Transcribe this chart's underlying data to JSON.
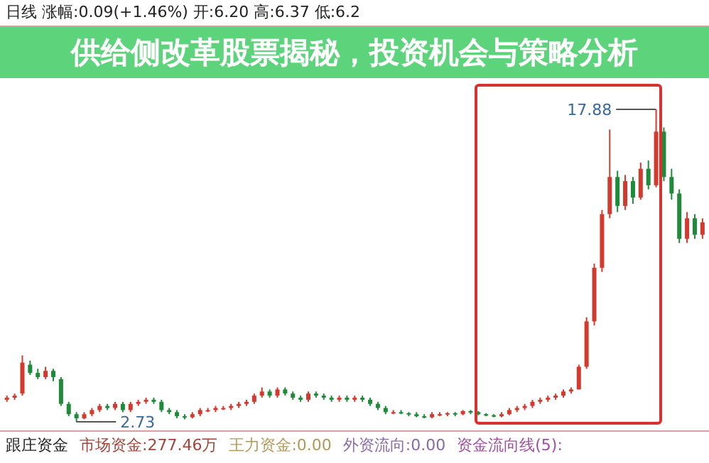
{
  "chart_data": {
    "type": "candlestick",
    "title": "供给侧改革股票揭秘，投资机会与策略分析",
    "categories": [
      null,
      null,
      null,
      null,
      null,
      null,
      null,
      null,
      null,
      null,
      null,
      null,
      null,
      null,
      null,
      null,
      null,
      null,
      null,
      null,
      null,
      null,
      null,
      null,
      null,
      null,
      null,
      null,
      null,
      null,
      null,
      null,
      null,
      null,
      null,
      null,
      null,
      null,
      null,
      null,
      null,
      null,
      null,
      null,
      null,
      null,
      null,
      null,
      null,
      null,
      null,
      null,
      null,
      null,
      null,
      null,
      null,
      null,
      null,
      null,
      null,
      null,
      null,
      null,
      null,
      null,
      null,
      null,
      null,
      null,
      null,
      null,
      null,
      null,
      null,
      null,
      null,
      null,
      null,
      null,
      null,
      null,
      null,
      null,
      null,
      null,
      null,
      null,
      null,
      null,
      null
    ],
    "ohlc": [
      [
        3.8,
        4.0,
        3.7,
        3.9
      ],
      [
        3.9,
        4.1,
        3.8,
        4.0
      ],
      [
        4.1,
        5.95,
        4.0,
        5.6
      ],
      [
        5.5,
        5.7,
        5.0,
        5.1
      ],
      [
        5.1,
        5.3,
        4.8,
        4.9
      ],
      [
        4.9,
        5.4,
        4.8,
        5.2
      ],
      [
        5.2,
        5.3,
        4.7,
        4.9
      ],
      [
        4.8,
        4.9,
        3.5,
        3.6
      ],
      [
        3.6,
        3.7,
        3.0,
        3.1
      ],
      [
        3.1,
        3.2,
        2.73,
        2.9
      ],
      [
        2.9,
        3.2,
        2.85,
        3.1
      ],
      [
        3.1,
        3.4,
        3.0,
        3.3
      ],
      [
        3.3,
        3.6,
        3.2,
        3.5
      ],
      [
        3.5,
        3.6,
        3.3,
        3.4
      ],
      [
        3.4,
        3.7,
        3.3,
        3.6
      ],
      [
        3.6,
        3.7,
        3.2,
        3.3
      ],
      [
        3.3,
        3.7,
        3.2,
        3.6
      ],
      [
        3.6,
        3.8,
        3.5,
        3.7
      ],
      [
        3.7,
        3.9,
        3.6,
        3.8
      ],
      [
        3.8,
        3.9,
        3.6,
        3.7
      ],
      [
        3.7,
        3.8,
        3.2,
        3.3
      ],
      [
        3.3,
        3.4,
        3.1,
        3.2
      ],
      [
        3.2,
        3.3,
        2.9,
        3.0
      ],
      [
        3.0,
        3.1,
        2.85,
        2.95
      ],
      [
        2.95,
        3.2,
        2.9,
        3.1
      ],
      [
        3.1,
        3.4,
        3.0,
        3.3
      ],
      [
        3.3,
        3.4,
        3.2,
        3.3
      ],
      [
        3.3,
        3.5,
        3.2,
        3.4
      ],
      [
        3.4,
        3.5,
        3.3,
        3.4
      ],
      [
        3.4,
        3.6,
        3.3,
        3.5
      ],
      [
        3.5,
        3.7,
        3.4,
        3.6
      ],
      [
        3.6,
        3.8,
        3.5,
        3.7
      ],
      [
        3.7,
        4.1,
        3.6,
        4.0
      ],
      [
        4.0,
        4.4,
        3.9,
        4.2
      ],
      [
        4.2,
        4.3,
        3.9,
        4.0
      ],
      [
        4.0,
        4.4,
        3.9,
        4.3
      ],
      [
        4.3,
        4.4,
        4.0,
        4.1
      ],
      [
        4.1,
        4.2,
        3.8,
        3.9
      ],
      [
        3.9,
        4.0,
        3.7,
        3.8
      ],
      [
        3.8,
        4.2,
        3.7,
        4.1
      ],
      [
        4.1,
        4.2,
        3.9,
        4.0
      ],
      [
        4.0,
        4.1,
        3.8,
        3.9
      ],
      [
        3.9,
        4.0,
        3.7,
        3.8
      ],
      [
        3.8,
        4.0,
        3.7,
        3.9
      ],
      [
        3.9,
        4.0,
        3.7,
        3.8
      ],
      [
        3.8,
        4.0,
        3.7,
        3.9
      ],
      [
        3.9,
        4.0,
        3.7,
        3.8
      ],
      [
        3.8,
        3.9,
        3.5,
        3.6
      ],
      [
        3.6,
        3.7,
        3.3,
        3.4
      ],
      [
        3.4,
        3.5,
        3.1,
        3.2
      ],
      [
        3.2,
        3.3,
        3.1,
        3.2
      ],
      [
        3.2,
        3.3,
        3.1,
        3.15
      ],
      [
        3.15,
        3.2,
        3.0,
        3.1
      ],
      [
        3.1,
        3.2,
        2.95,
        3.0
      ],
      [
        3.0,
        3.1,
        2.9,
        2.95
      ],
      [
        2.95,
        3.2,
        2.9,
        3.1
      ],
      [
        3.1,
        3.2,
        3.0,
        3.1
      ],
      [
        3.1,
        3.2,
        3.0,
        3.15
      ],
      [
        3.15,
        3.2,
        3.0,
        3.1
      ],
      [
        3.1,
        3.3,
        3.05,
        3.25
      ],
      [
        3.25,
        3.3,
        3.1,
        3.2
      ],
      [
        3.2,
        3.25,
        3.05,
        3.1
      ],
      [
        3.1,
        3.15,
        3.0,
        3.05
      ],
      [
        3.05,
        3.1,
        2.95,
        3.0
      ],
      [
        3.0,
        3.2,
        2.95,
        3.1
      ],
      [
        3.1,
        3.4,
        3.05,
        3.3
      ],
      [
        3.3,
        3.5,
        3.2,
        3.4
      ],
      [
        3.4,
        3.6,
        3.3,
        3.5
      ],
      [
        3.5,
        3.8,
        3.4,
        3.7
      ],
      [
        3.7,
        3.9,
        3.6,
        3.8
      ],
      [
        3.8,
        4.0,
        3.7,
        3.9
      ],
      [
        3.9,
        4.1,
        3.8,
        4.0
      ],
      [
        4.0,
        4.3,
        3.9,
        4.2
      ],
      [
        4.2,
        4.4,
        4.1,
        4.3
      ],
      [
        4.3,
        5.5,
        4.3,
        5.4
      ],
      [
        5.4,
        7.8,
        5.3,
        7.6
      ],
      [
        7.6,
        10.4,
        7.4,
        10.2
      ],
      [
        10.2,
        13.0,
        10.0,
        12.8
      ],
      [
        12.8,
        16.9,
        12.6,
        14.6
      ],
      [
        14.6,
        14.9,
        12.9,
        13.2
      ],
      [
        13.2,
        14.7,
        13.0,
        14.4
      ],
      [
        14.4,
        14.6,
        13.3,
        13.6
      ],
      [
        13.6,
        15.3,
        13.5,
        15.0
      ],
      [
        15.0,
        15.4,
        14.0,
        14.2
      ],
      [
        14.2,
        17.88,
        14.1,
        16.8
      ],
      [
        16.8,
        17.0,
        14.4,
        14.6
      ],
      [
        14.6,
        15.0,
        13.5,
        13.8
      ],
      [
        13.8,
        14.0,
        11.4,
        11.6
      ],
      [
        11.6,
        12.9,
        11.4,
        12.6
      ],
      [
        12.6,
        12.8,
        11.6,
        11.8
      ],
      [
        11.8,
        12.6,
        11.6,
        12.4
      ]
    ],
    "annotations": [
      "17.88",
      "2.73",
      "日线 涨幅:0.09(+1.46%) 开:6.20 高:6.37 低:6.2",
      "跟庄资金",
      "市场资金:277.46万",
      "王力资金:0.00",
      "外资流向:0.00",
      "资金流向线(5):"
    ]
  }
}
